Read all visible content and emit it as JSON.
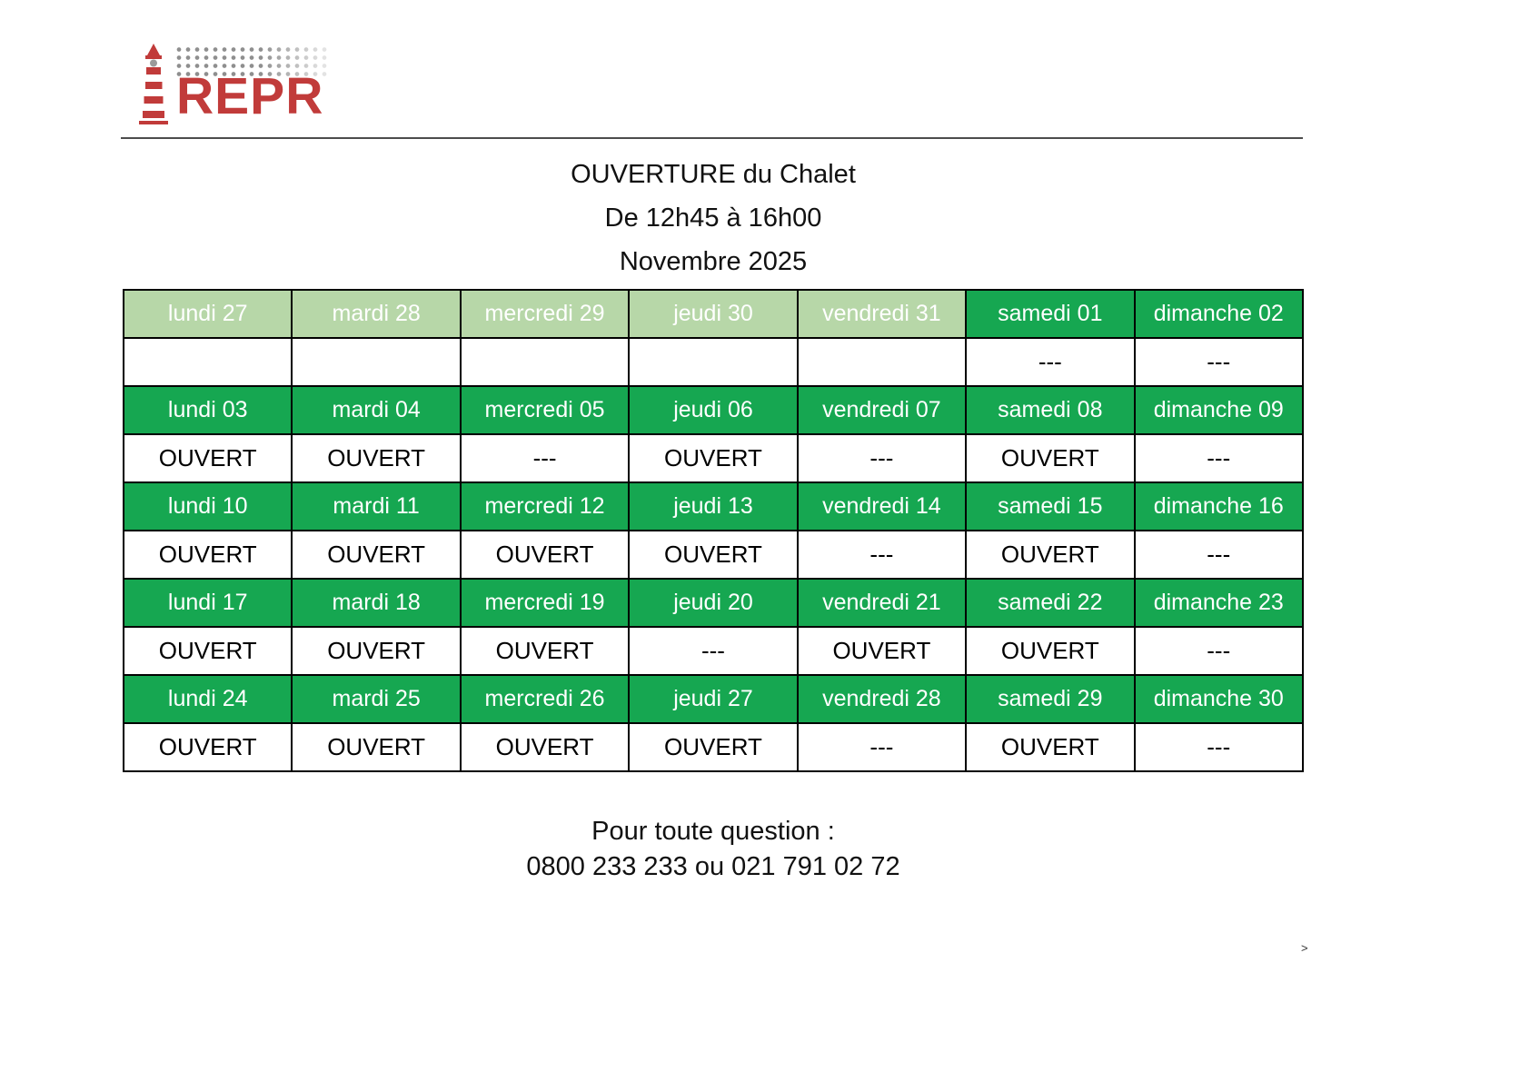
{
  "colors": {
    "dark_green": "#16a751",
    "light_green": "#b7d7a8",
    "logo_red": "#c13b3a",
    "dot_gray": "#8f8f8f"
  },
  "logo": {
    "text": "REPR",
    "icon": "lighthouse-with-light-beam"
  },
  "title": {
    "line1": "OUVERTURE du Chalet",
    "line2": "De 12h45 à 16h00",
    "line3": "Novembre 2025"
  },
  "calendar": {
    "weeks": [
      {
        "days": [
          "lundi 27",
          "mardi 28",
          "mercredi 29",
          "jeudi 30",
          "vendredi 31",
          "samedi 01",
          "dimanche 02"
        ],
        "tones": [
          "light",
          "light",
          "light",
          "light",
          "light",
          "dark",
          "dark"
        ],
        "values": [
          "",
          "",
          "",
          "",
          "",
          "---",
          "---"
        ]
      },
      {
        "days": [
          "lundi 03",
          "mardi 04",
          "mercredi 05",
          "jeudi 06",
          "vendredi 07",
          "samedi 08",
          "dimanche 09"
        ],
        "tones": [
          "dark",
          "dark",
          "dark",
          "dark",
          "dark",
          "dark",
          "dark"
        ],
        "values": [
          "OUVERT",
          "OUVERT",
          "---",
          "OUVERT",
          "---",
          "OUVERT",
          "---"
        ]
      },
      {
        "days": [
          "lundi 10",
          "mardi 11",
          "mercredi 12",
          "jeudi 13",
          "vendredi 14",
          "samedi 15",
          "dimanche 16"
        ],
        "tones": [
          "dark",
          "dark",
          "dark",
          "dark",
          "dark",
          "dark",
          "dark"
        ],
        "values": [
          "OUVERT",
          "OUVERT",
          "OUVERT",
          "OUVERT",
          "---",
          "OUVERT",
          "---"
        ]
      },
      {
        "days": [
          "lundi 17",
          "mardi 18",
          "mercredi 19",
          "jeudi 20",
          "vendredi 21",
          "samedi 22",
          "dimanche 23"
        ],
        "tones": [
          "dark",
          "dark",
          "dark",
          "dark",
          "dark",
          "dark",
          "dark"
        ],
        "values": [
          "OUVERT",
          "OUVERT",
          "OUVERT",
          "---",
          "OUVERT",
          "OUVERT",
          "---"
        ]
      },
      {
        "days": [
          "lundi 24",
          "mardi 25",
          "mercredi 26",
          "jeudi 27",
          "vendredi 28",
          "samedi 29",
          "dimanche 30"
        ],
        "tones": [
          "dark",
          "dark",
          "dark",
          "dark",
          "dark",
          "dark",
          "dark"
        ],
        "values": [
          "OUVERT",
          "OUVERT",
          "OUVERT",
          "OUVERT",
          "---",
          "OUVERT",
          "---"
        ]
      }
    ]
  },
  "footer": {
    "line1": "Pour toute question :",
    "line2": "0800 233 233 ou 021 791 02 72"
  },
  "page_nav": {
    "next": ">"
  }
}
